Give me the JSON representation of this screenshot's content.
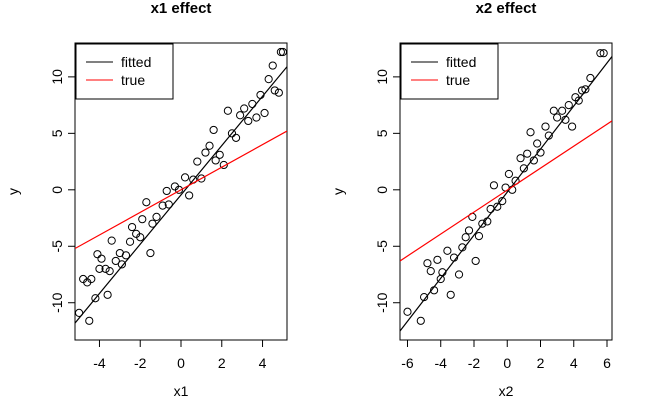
{
  "chart_data": [
    {
      "type": "scatter",
      "title": "x1 effect",
      "xlabel": "x1",
      "ylabel": "y",
      "xlim": [
        -5.2,
        5.2
      ],
      "ylim": [
        -13.3,
        13
      ],
      "xticks": [
        -4,
        -2,
        0,
        2,
        4
      ],
      "yticks": [
        -10,
        -5,
        0,
        5,
        10
      ],
      "point_color": "#000000",
      "legend": "top-left",
      "x": [
        -5.0,
        -4.8,
        -4.6,
        -4.5,
        -4.4,
        -4.2,
        -4.1,
        -4.0,
        -3.9,
        -3.7,
        -3.6,
        -3.5,
        -3.4,
        -3.2,
        -3.0,
        -2.9,
        -2.7,
        -2.5,
        -2.4,
        -2.2,
        -2.0,
        -1.9,
        -1.7,
        -1.5,
        -1.4,
        -1.2,
        -0.9,
        -0.7,
        -0.6,
        -0.3,
        -0.1,
        0.2,
        0.4,
        0.6,
        0.8,
        1.0,
        1.2,
        1.4,
        1.6,
        1.7,
        1.9,
        2.1,
        2.3,
        2.5,
        2.7,
        2.9,
        3.1,
        3.3,
        3.5,
        3.7,
        3.9,
        4.1,
        4.3,
        4.5,
        4.6,
        4.8,
        4.9,
        5.0
      ],
      "values": [
        -10.9,
        -7.9,
        -8.2,
        -11.6,
        -7.9,
        -9.6,
        -5.7,
        -7.0,
        -6.1,
        -7.0,
        -9.3,
        -7.2,
        -4.5,
        -6.3,
        -5.6,
        -6.6,
        -5.8,
        -4.6,
        -3.3,
        -3.9,
        -4.2,
        -2.6,
        -1.1,
        -5.6,
        -3.0,
        -2.4,
        -1.4,
        -0.1,
        -1.3,
        0.3,
        0.0,
        1.1,
        -0.5,
        0.9,
        2.5,
        1.0,
        3.3,
        3.9,
        5.3,
        2.6,
        3.1,
        2.2,
        7.0,
        5.0,
        4.6,
        6.6,
        7.2,
        6.1,
        7.6,
        6.4,
        8.4,
        6.8,
        9.8,
        11.0,
        8.8,
        8.6,
        12.2,
        12.2
      ],
      "lines": [
        {
          "name": "fitted",
          "color": "#000000",
          "x": [
            -5.2,
            5.2
          ],
          "values": [
            -11.8,
            10.9
          ]
        },
        {
          "name": "true",
          "color": "#ff0000",
          "x": [
            -5.2,
            5.2
          ],
          "values": [
            -5.2,
            5.2
          ]
        }
      ]
    },
    {
      "type": "scatter",
      "title": "x2 effect",
      "xlabel": "x2",
      "ylabel": "y",
      "xlim": [
        -6.45,
        6.3
      ],
      "ylim": [
        -13.3,
        13
      ],
      "xticks": [
        -6,
        -4,
        -2,
        0,
        2,
        4,
        6
      ],
      "yticks": [
        -10,
        -5,
        0,
        5,
        10
      ],
      "point_color": "#000000",
      "legend": "top-left",
      "x": [
        -6.0,
        -5.2,
        -5.0,
        -4.8,
        -4.6,
        -4.4,
        -4.2,
        -4.0,
        -3.9,
        -3.6,
        -3.4,
        -3.2,
        -2.9,
        -2.7,
        -2.5,
        -2.3,
        -2.1,
        -1.9,
        -1.7,
        -1.5,
        -1.2,
        -1.0,
        -0.8,
        -0.6,
        -0.3,
        -0.1,
        0.1,
        0.3,
        0.5,
        0.8,
        1.0,
        1.2,
        1.4,
        1.6,
        1.8,
        2.0,
        2.3,
        2.5,
        2.8,
        3.0,
        3.3,
        3.5,
        3.7,
        3.9,
        4.1,
        4.3,
        4.5,
        4.7,
        5.0,
        5.6,
        5.8
      ],
      "values": [
        -10.8,
        -11.6,
        -9.5,
        -6.5,
        -7.2,
        -8.9,
        -6.2,
        -7.9,
        -7.3,
        -5.4,
        -9.3,
        -6.0,
        -7.5,
        -5.1,
        -4.2,
        -3.6,
        -2.4,
        -6.3,
        -4.1,
        -3.0,
        -2.8,
        -1.7,
        0.4,
        -1.5,
        -1.0,
        0.2,
        1.4,
        0.0,
        0.8,
        2.8,
        1.9,
        3.2,
        5.1,
        2.6,
        4.1,
        3.3,
        5.6,
        4.8,
        7.0,
        6.4,
        7.0,
        6.2,
        7.5,
        5.6,
        8.2,
        7.9,
        8.8,
        8.9,
        9.9,
        12.1,
        12.1
      ],
      "lines": [
        {
          "name": "fitted",
          "color": "#000000",
          "x": [
            -6.45,
            6.3
          ],
          "values": [
            -12.5,
            11.8
          ]
        },
        {
          "name": "true",
          "color": "#ff0000",
          "x": [
            -6.45,
            6.3
          ],
          "values": [
            -6.3,
            6.1
          ]
        }
      ]
    }
  ]
}
